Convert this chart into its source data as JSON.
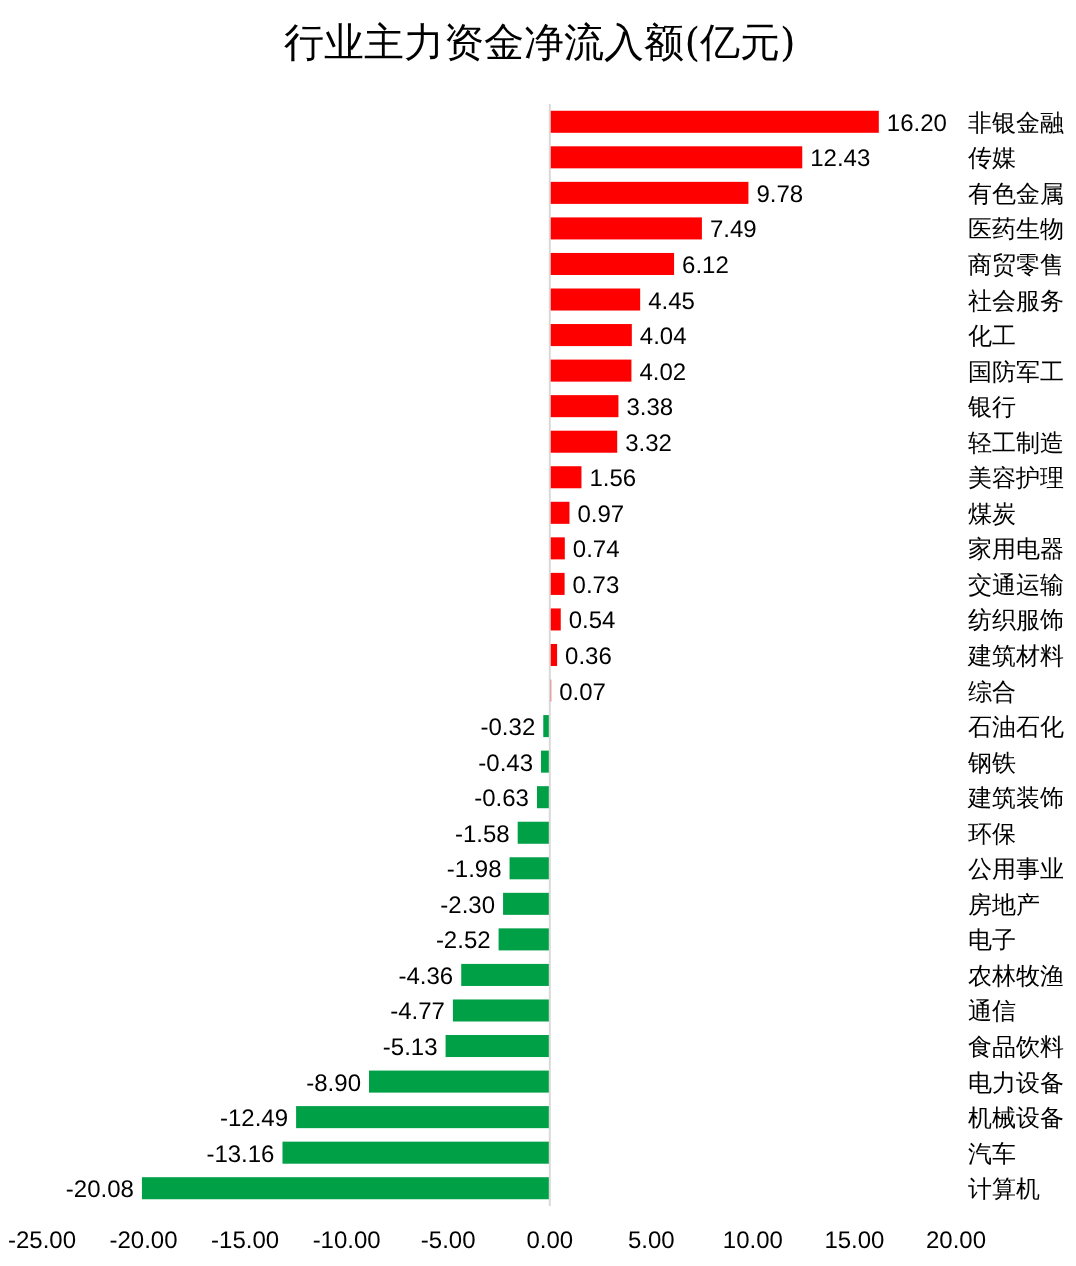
{
  "chart_data": {
    "type": "bar",
    "orientation": "horizontal",
    "title": "行业主力资金净流入额(亿元)",
    "categories": [
      "非银金融",
      "传媒",
      "有色金属",
      "医药生物",
      "商贸零售",
      "社会服务",
      "化工",
      "国防军工",
      "银行",
      "轻工制造",
      "美容护理",
      "煤炭",
      "家用电器",
      "交通运输",
      "纺织服饰",
      "建筑材料",
      "综合",
      "石油石化",
      "钢铁",
      "建筑装饰",
      "环保",
      "公用事业",
      "房地产",
      "电子",
      "农林牧渔",
      "通信",
      "食品饮料",
      "电力设备",
      "机械设备",
      "汽车",
      "计算机"
    ],
    "values": [
      16.2,
      12.43,
      9.78,
      7.49,
      6.12,
      4.45,
      4.04,
      4.02,
      3.38,
      3.32,
      1.56,
      0.97,
      0.74,
      0.73,
      0.54,
      0.36,
      0.07,
      -0.32,
      -0.43,
      -0.63,
      -1.58,
      -1.98,
      -2.3,
      -2.52,
      -4.36,
      -4.77,
      -5.13,
      -8.9,
      -12.49,
      -13.16,
      -20.08
    ],
    "value_labels": [
      "16.20",
      "12.43",
      "9.78",
      "7.49",
      "6.12",
      "4.45",
      "4.04",
      "4.02",
      "3.38",
      "3.32",
      "1.56",
      "0.97",
      "0.74",
      "0.73",
      "0.54",
      "0.36",
      "0.07",
      "-0.32",
      "-0.43",
      "-0.63",
      "-1.58",
      "-1.98",
      "-2.30",
      "-2.52",
      "-4.36",
      "-4.77",
      "-5.13",
      "-8.90",
      "-12.49",
      "-13.16",
      "-20.08"
    ],
    "colors": [
      "#ff0000",
      "#ff0000",
      "#ff0000",
      "#ff0000",
      "#ff0000",
      "#ff0000",
      "#ff0000",
      "#ff0000",
      "#ff0000",
      "#ff0000",
      "#ff0000",
      "#ff0000",
      "#ff0000",
      "#ff0000",
      "#ff0000",
      "#ff0000",
      "#ff0000",
      "#00a046",
      "#00a046",
      "#00a046",
      "#00a046",
      "#00a046",
      "#00a046",
      "#00a046",
      "#00a046",
      "#00a046",
      "#00a046",
      "#00a046",
      "#00a046",
      "#00a046",
      "#00a046"
    ],
    "xlim": [
      -25,
      20
    ],
    "xticks": [
      {
        "value": -25,
        "label": "-25.00"
      },
      {
        "value": -20,
        "label": "-20.00"
      },
      {
        "value": -15,
        "label": "-15.00"
      },
      {
        "value": -10,
        "label": "-10.00"
      },
      {
        "value": -5,
        "label": "-5.00"
      },
      {
        "value": 0,
        "label": "0.00"
      },
      {
        "value": 5,
        "label": "5.00"
      },
      {
        "value": 10,
        "label": "10.00"
      },
      {
        "value": 15,
        "label": "15.00"
      },
      {
        "value": 20,
        "label": "20.00"
      }
    ]
  }
}
